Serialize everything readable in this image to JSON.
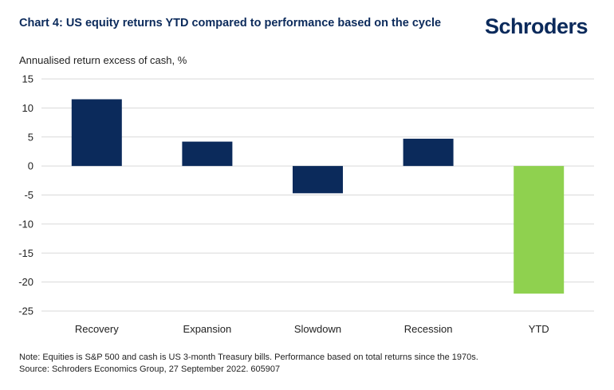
{
  "header": {
    "title": "Chart 4: US equity returns YTD compared to performance based on the cycle",
    "logo": "Schroders"
  },
  "colors": {
    "navy": "#0b2a5b",
    "green": "#8fd14f",
    "grid": "#d9d9d9"
  },
  "chart_data": {
    "type": "bar",
    "title": "Chart 4: US equity returns YTD compared to performance based on the cycle",
    "ylabel": "Annualised return excess of cash, %",
    "xlabel": "",
    "categories": [
      "Recovery",
      "Expansion",
      "Slowdown",
      "Recession",
      "YTD"
    ],
    "values": [
      11.5,
      4.2,
      -4.7,
      4.7,
      -22.0
    ],
    "bar_colors": [
      "#0b2a5b",
      "#0b2a5b",
      "#0b2a5b",
      "#0b2a5b",
      "#8fd14f"
    ],
    "ylim": [
      -25,
      15
    ],
    "yticks": [
      15,
      10,
      5,
      0,
      -5,
      -10,
      -15,
      -20,
      -25
    ],
    "grid": true,
    "legend": "none"
  },
  "footer": {
    "note": "Note: Equities is S&P 500 and cash is US 3-month Treasury bills. Performance based on total returns since the 1970s.",
    "source": "Source: Schroders Economics Group, 27 September 2022. 605907"
  }
}
